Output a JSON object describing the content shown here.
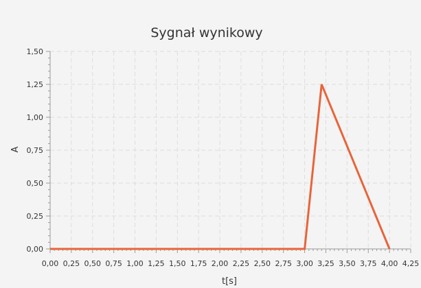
{
  "chart_data": {
    "type": "line",
    "title": "Sygnał wynikowy",
    "xlabel": "t[s]",
    "ylabel": "A",
    "xlim": [
      0,
      4.25
    ],
    "ylim": [
      0,
      1.5
    ],
    "x_ticks": [
      "0,00",
      "0,25",
      "0,50",
      "0,75",
      "1,00",
      "1,25",
      "1,50",
      "1,75",
      "2,00",
      "2,25",
      "2,50",
      "2,75",
      "3,00",
      "3,25",
      "3,50",
      "3,75",
      "4,00",
      "4,25"
    ],
    "y_ticks": [
      "0,00",
      "0,25",
      "0,50",
      "0,75",
      "1,00",
      "1,25",
      "1,50"
    ],
    "grid": true,
    "series": [
      {
        "color": "#e8643a",
        "points": [
          {
            "x": 0.0,
            "y": 0.0
          },
          {
            "x": 3.0,
            "y": 0.0
          },
          {
            "x": 3.2,
            "y": 1.25
          },
          {
            "x": 4.0,
            "y": 0.0
          }
        ]
      }
    ]
  },
  "colors": {
    "background": "#f4f4f4",
    "grid": "#dddddd",
    "axis": "#9a9a9a",
    "series": "#e8643a"
  }
}
